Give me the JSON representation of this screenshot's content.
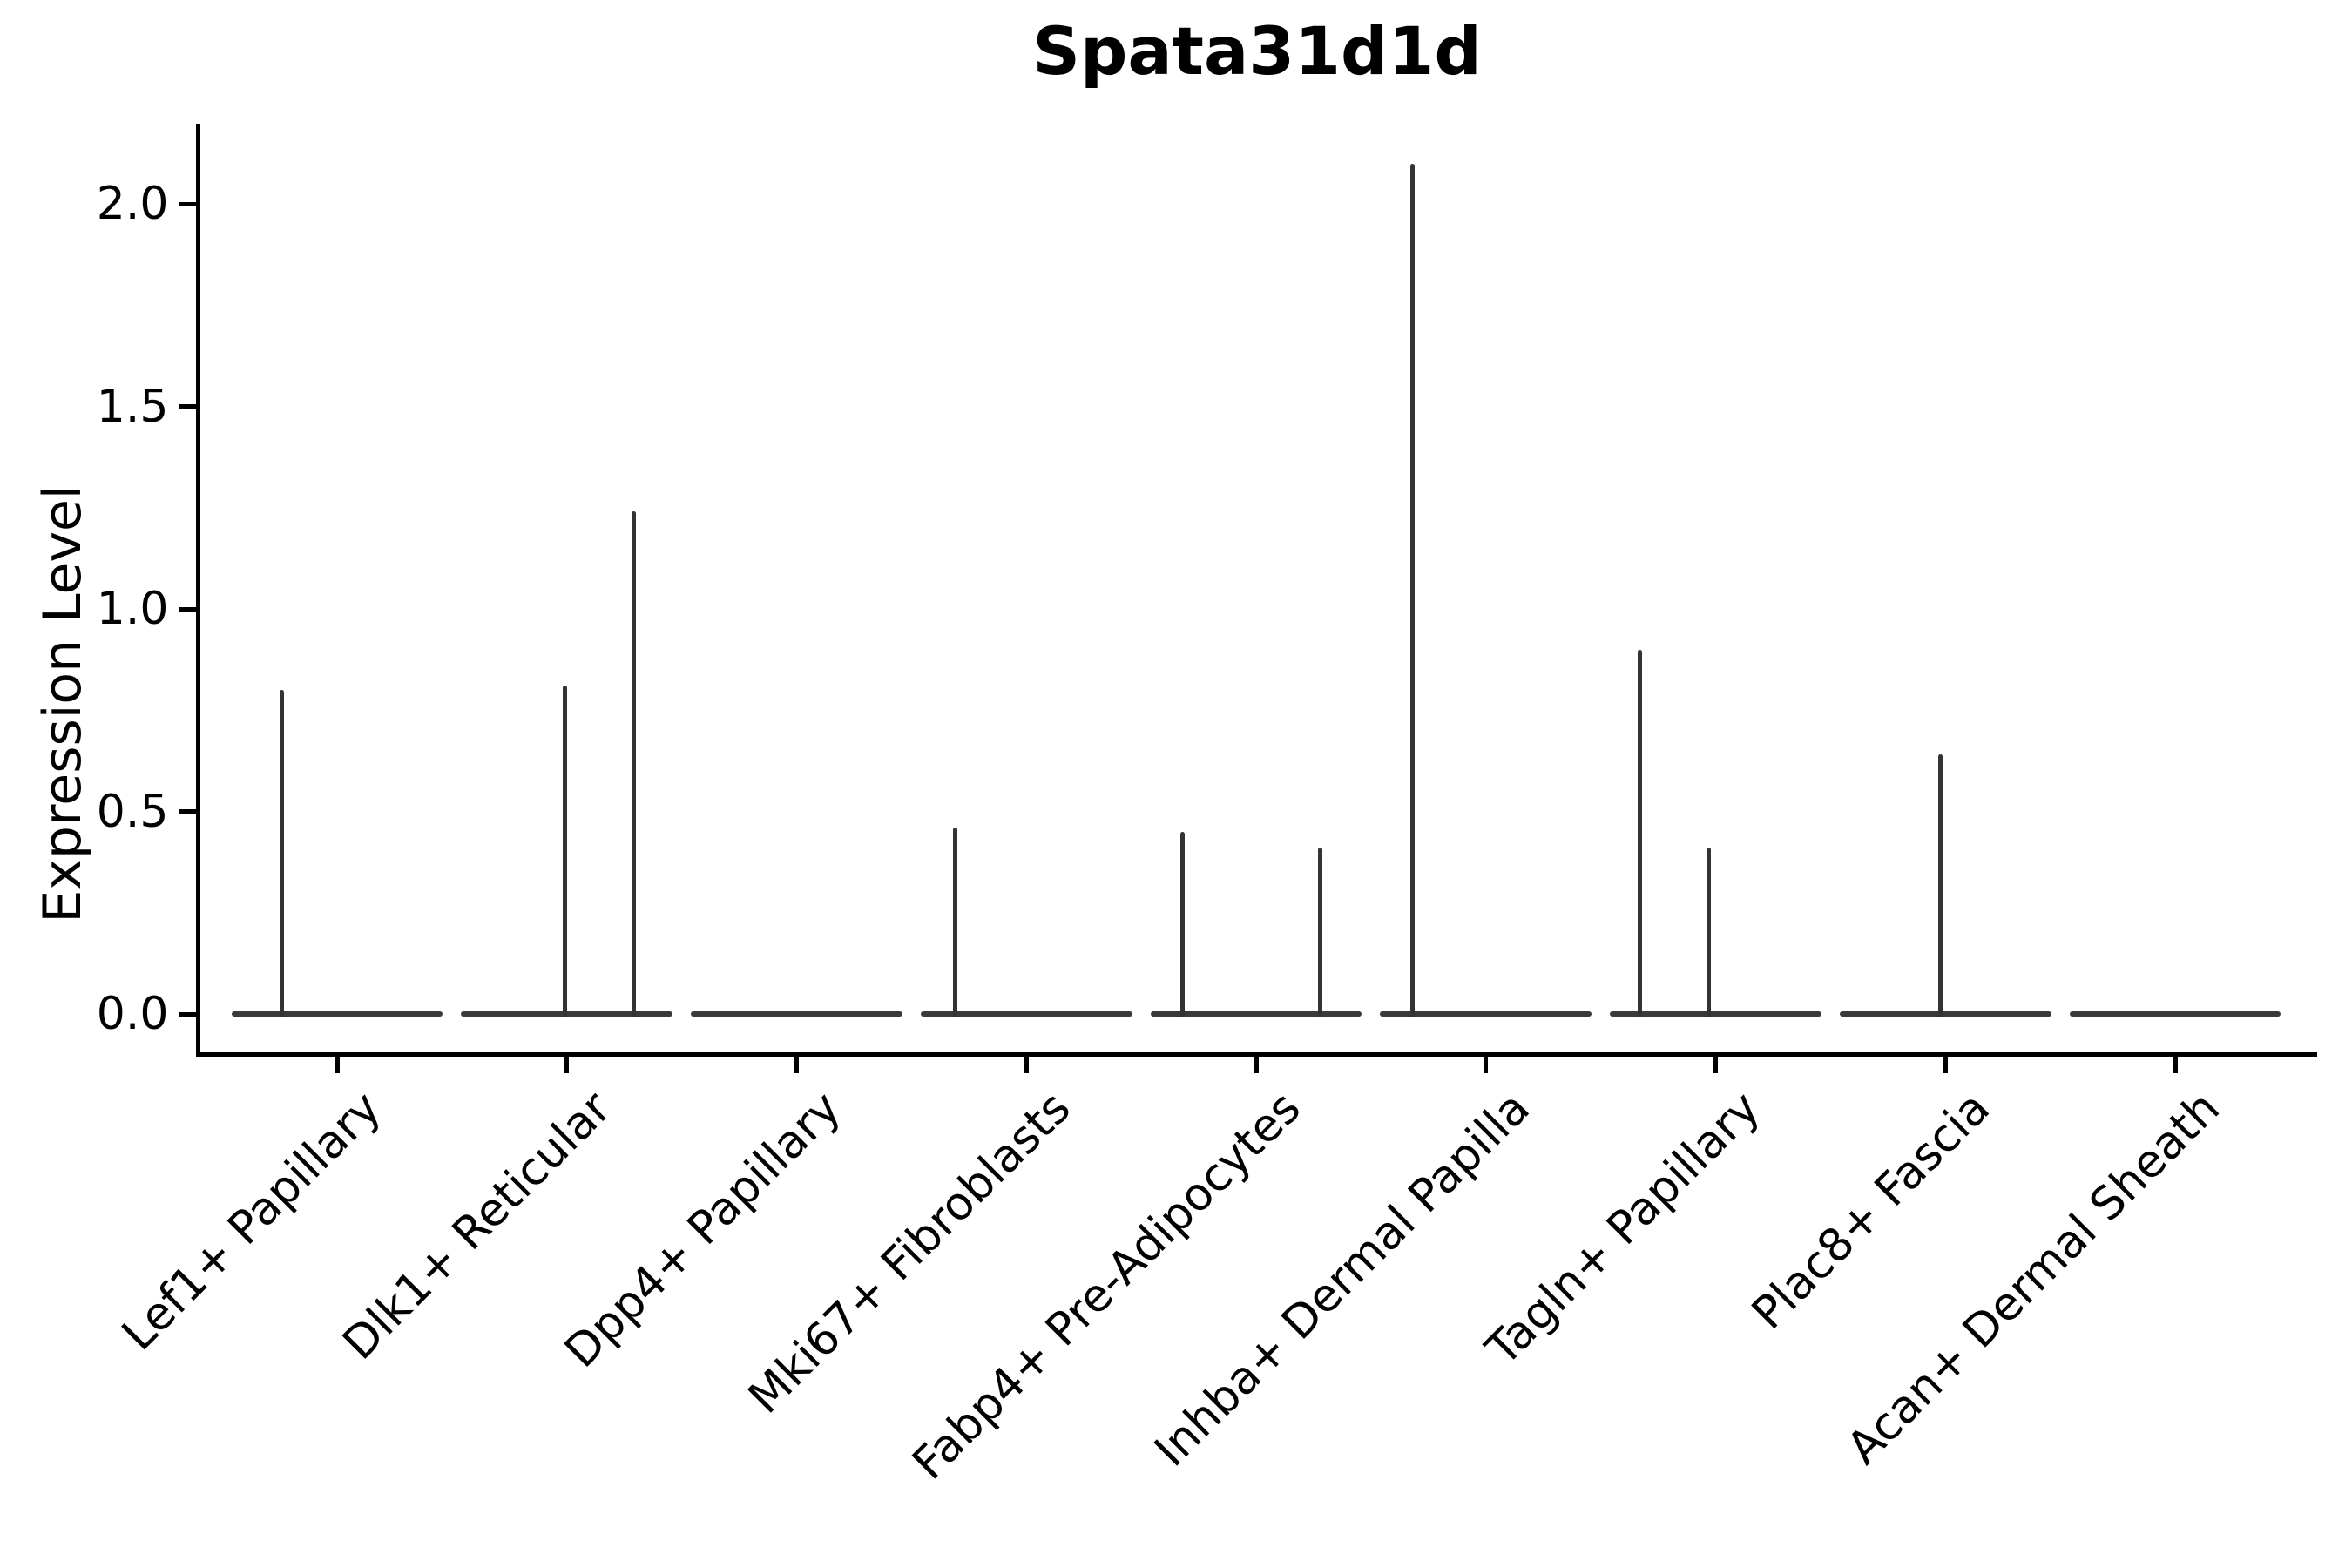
{
  "chart_data": {
    "type": "violin",
    "title": "Spata31d1d",
    "ylabel": "Expression Level",
    "xlabel": "",
    "grid": false,
    "legend": "none",
    "background": "#ffffff",
    "line_color": "#333333",
    "zero_line_color": "#3a3a3a",
    "axis_color": "#000000",
    "ylim": [
      -0.11,
      2.2
    ],
    "ytick_values": [
      0,
      0.5,
      1.0,
      1.5,
      2.0
    ],
    "ytick_labels": [
      "0.0",
      "0.5",
      "1.0",
      "1.5",
      "2.0"
    ],
    "categories": [
      "Lef1+ Papillary",
      "Dlk1+ Reticular",
      "Dpp4+ Papillary",
      "Mki67+ Fibroblasts",
      "Fabp4+ Pre-Adipocytes",
      "Inhba+ Dermal Papilla",
      "Tagln+ Papillary",
      "Plac8+ Fascia",
      "Acan+ Dermal Sheath"
    ],
    "violin_half_width_units": 0.46,
    "violins": [
      {
        "category": "Lef1+ Papillary",
        "zero_line": true,
        "spikes": [
          {
            "offset_units": -0.24,
            "max_value": 0.8
          }
        ]
      },
      {
        "category": "Dlk1+ Reticular",
        "zero_line": true,
        "spikes": [
          {
            "offset_units": -0.01,
            "max_value": 0.81
          },
          {
            "offset_units": 0.29,
            "max_value": 1.24
          }
        ]
      },
      {
        "category": "Dpp4+ Papillary",
        "zero_line": true,
        "spikes": []
      },
      {
        "category": "Mki67+ Fibroblasts",
        "zero_line": true,
        "spikes": [
          {
            "offset_units": -0.31,
            "max_value": 0.46
          }
        ]
      },
      {
        "category": "Fabp4+ Pre-Adipocytes",
        "zero_line": true,
        "spikes": [
          {
            "offset_units": -0.32,
            "max_value": 0.45
          },
          {
            "offset_units": 0.28,
            "max_value": 0.41
          }
        ]
      },
      {
        "category": "Inhba+ Dermal Papilla",
        "zero_line": true,
        "spikes": [
          {
            "offset_units": -0.32,
            "max_value": 2.1
          }
        ]
      },
      {
        "category": "Tagln+ Papillary",
        "zero_line": true,
        "spikes": [
          {
            "offset_units": -0.33,
            "max_value": 0.9
          },
          {
            "offset_units": -0.03,
            "max_value": 0.41
          }
        ]
      },
      {
        "category": "Plac8+ Fascia",
        "zero_line": true,
        "spikes": [
          {
            "offset_units": -0.02,
            "max_value": 0.64
          }
        ]
      },
      {
        "category": "Acan+ Dermal Sheath",
        "zero_line": true,
        "spikes": []
      }
    ]
  }
}
